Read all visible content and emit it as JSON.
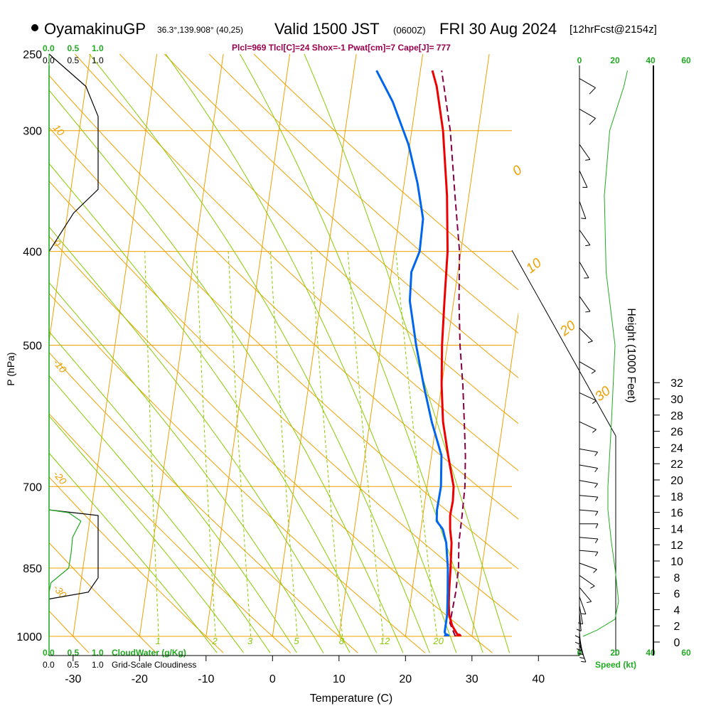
{
  "header": {
    "station": "OyamakinuGP",
    "coords": "36.3°,139.908° (40,25)",
    "valid": "Valid 1500 JST",
    "valid_z": "(0600Z)",
    "date": "FRI 30 Aug 2024",
    "forecast": "[12hrFcst@2154z]",
    "indices": "Plcl=969 Tlcl[C]=24 Shox=-1 Pwat[cm]=7 Cape[J]= 777"
  },
  "colors": {
    "isobar": "#f0a000",
    "dry_adiabat": "#f0a000",
    "moist_adiabat": "#88cc00",
    "mixing_ratio": "#88cc00",
    "temperature": "#ee0000",
    "dewpoint": "#0066ee",
    "parcel": "#880044",
    "cloud": "#22aa22",
    "wind_speed": "#22aa22"
  },
  "chart_data": {
    "type": "skew-t log-p sounding",
    "xlabel": "Temperature (C)",
    "ylabel": "P (hPa)",
    "y2label": "Height (1000 Feet)",
    "x_ticks": [
      "-30",
      "-20",
      "-10",
      "0",
      "10",
      "20",
      "30",
      "40"
    ],
    "x_tick_values": [
      -30,
      -20,
      -10,
      0,
      10,
      20,
      30,
      40
    ],
    "p_ticks": [
      "250",
      "300",
      "400",
      "500",
      "700",
      "850",
      "1000"
    ],
    "p_tick_values": [
      250,
      300,
      400,
      500,
      700,
      850,
      1000
    ],
    "height_ticks": [
      "0",
      "2",
      "4",
      "6",
      "8",
      "10",
      "12",
      "14",
      "16",
      "18",
      "20",
      "22",
      "24",
      "26",
      "28",
      "30",
      "32"
    ],
    "height_tick_values": [
      0,
      2,
      4,
      6,
      8,
      10,
      12,
      14,
      16,
      18,
      20,
      22,
      24,
      26,
      28,
      30,
      32
    ],
    "dry_adiabat_labels": [
      "10",
      "0",
      "-10",
      "-20",
      "-30"
    ],
    "dry_adiabat_label_values": [
      10,
      0,
      -10,
      -20,
      -30
    ],
    "moist_adiabat_labels": [
      "0",
      "10",
      "20",
      "30"
    ],
    "moist_adiabat_label_values": [
      0,
      10,
      20,
      30
    ],
    "mixing_ratio_labels": [
      "1",
      "2",
      "3",
      "5",
      "8",
      "12",
      "20"
    ],
    "mixing_ratio_label_values": [
      1,
      2,
      3,
      5,
      8,
      12,
      20
    ],
    "cloud_axis_ticks": [
      "0.0",
      "0.5",
      "1.0"
    ],
    "cloud_axis_values": [
      0.0,
      0.5,
      1.0
    ],
    "cloud_water_label": "CloudWater (g/Kg)",
    "cloudiness_label": "Grid-Scale Cloudiness",
    "speed_ticks": [
      "0",
      "20",
      "40",
      "60"
    ],
    "speed_tick_values": [
      0,
      20,
      40,
      60
    ],
    "speed_label": "Speed (kt)",
    "temperature": [
      {
        "p": 1000,
        "t": 28.0
      },
      {
        "p": 990,
        "t": 27.5
      },
      {
        "p": 975,
        "t": 26.8
      },
      {
        "p": 950,
        "t": 26.1
      },
      {
        "p": 925,
        "t": 25.8
      },
      {
        "p": 900,
        "t": 25.6
      },
      {
        "p": 850,
        "t": 25.3
      },
      {
        "p": 800,
        "t": 24.9
      },
      {
        "p": 775,
        "t": 24.4
      },
      {
        "p": 750,
        "t": 24.1
      },
      {
        "p": 725,
        "t": 24.2
      },
      {
        "p": 700,
        "t": 24.0
      },
      {
        "p": 650,
        "t": 22.5
      },
      {
        "p": 600,
        "t": 21.0
      },
      {
        "p": 550,
        "t": 20.0
      },
      {
        "p": 500,
        "t": 19.2
      },
      {
        "p": 450,
        "t": 18.6
      },
      {
        "p": 400,
        "t": 18.0
      },
      {
        "p": 350,
        "t": 16.7
      },
      {
        "p": 300,
        "t": 14.7
      },
      {
        "p": 270,
        "t": 12.8
      },
      {
        "p": 260,
        "t": 11.8
      }
    ],
    "dewpoint": [
      {
        "p": 1000,
        "t": 26.2
      },
      {
        "p": 990,
        "t": 25.8
      },
      {
        "p": 950,
        "t": 25.8
      },
      {
        "p": 900,
        "t": 25.4
      },
      {
        "p": 850,
        "t": 24.9
      },
      {
        "p": 800,
        "t": 24.1
      },
      {
        "p": 775,
        "t": 23.3
      },
      {
        "p": 760,
        "t": 22.2
      },
      {
        "p": 740,
        "t": 22.0
      },
      {
        "p": 700,
        "t": 22.1
      },
      {
        "p": 650,
        "t": 21.5
      },
      {
        "p": 600,
        "t": 19.3
      },
      {
        "p": 550,
        "t": 17.3
      },
      {
        "p": 500,
        "t": 15.3
      },
      {
        "p": 450,
        "t": 13.4
      },
      {
        "p": 420,
        "t": 13.0
      },
      {
        "p": 400,
        "t": 13.8
      },
      {
        "p": 370,
        "t": 13.6
      },
      {
        "p": 340,
        "t": 12.0
      },
      {
        "p": 310,
        "t": 9.8
      },
      {
        "p": 280,
        "t": 6.5
      },
      {
        "p": 260,
        "t": 3.4
      }
    ],
    "parcel": [
      {
        "p": 1000,
        "t": 27.5
      },
      {
        "p": 969,
        "t": 26.4
      },
      {
        "p": 900,
        "t": 26.6
      },
      {
        "p": 850,
        "t": 26.5
      },
      {
        "p": 800,
        "t": 26.0
      },
      {
        "p": 750,
        "t": 25.9
      },
      {
        "p": 700,
        "t": 25.7
      },
      {
        "p": 650,
        "t": 25.1
      },
      {
        "p": 600,
        "t": 24.2
      },
      {
        "p": 550,
        "t": 23.2
      },
      {
        "p": 500,
        "t": 21.9
      },
      {
        "p": 450,
        "t": 20.8
      },
      {
        "p": 400,
        "t": 19.8
      },
      {
        "p": 350,
        "t": 17.9
      },
      {
        "p": 300,
        "t": 15.8
      },
      {
        "p": 260,
        "t": 13.2
      }
    ],
    "cloud_water_profile": [
      {
        "p": 1000,
        "v": 0.0
      },
      {
        "p": 900,
        "v": 0.0
      },
      {
        "p": 880,
        "v": 0.04
      },
      {
        "p": 850,
        "v": 0.4
      },
      {
        "p": 820,
        "v": 0.45
      },
      {
        "p": 790,
        "v": 0.48
      },
      {
        "p": 760,
        "v": 0.65
      },
      {
        "p": 745,
        "v": 0.4
      },
      {
        "p": 740,
        "v": 0.0
      },
      {
        "p": 250,
        "v": 0.0
      }
    ],
    "cloudiness_profiles": [
      [
        {
          "p": 740,
          "v": 0.0
        },
        {
          "p": 750,
          "v": 1.0
        },
        {
          "p": 870,
          "v": 1.0
        },
        {
          "p": 900,
          "v": 0.8
        },
        {
          "p": 915,
          "v": 0.0
        }
      ],
      [
        {
          "p": 250,
          "v": 0.0
        },
        {
          "p": 270,
          "v": 0.75
        },
        {
          "p": 290,
          "v": 1.0
        },
        {
          "p": 345,
          "v": 1.0
        },
        {
          "p": 365,
          "v": 0.5
        },
        {
          "p": 400,
          "v": 0.0
        }
      ]
    ],
    "wind_speed_profile": [
      {
        "p": 1000,
        "v": 2
      },
      {
        "p": 985,
        "v": 10
      },
      {
        "p": 960,
        "v": 20
      },
      {
        "p": 920,
        "v": 22
      },
      {
        "p": 850,
        "v": 20
      },
      {
        "p": 800,
        "v": 18
      },
      {
        "p": 740,
        "v": 16
      },
      {
        "p": 700,
        "v": 16
      },
      {
        "p": 600,
        "v": 18
      },
      {
        "p": 500,
        "v": 20
      },
      {
        "p": 420,
        "v": 15
      },
      {
        "p": 350,
        "v": 14
      },
      {
        "p": 300,
        "v": 17
      },
      {
        "p": 270,
        "v": 25
      },
      {
        "p": 260,
        "v": 27
      }
    ],
    "wind_barbs": [
      {
        "p": 265,
        "dir": 120,
        "spd": 8
      },
      {
        "p": 285,
        "dir": 120,
        "spd": 8
      },
      {
        "p": 310,
        "dir": 145,
        "spd": 6
      },
      {
        "p": 330,
        "dir": 155,
        "spd": 6
      },
      {
        "p": 355,
        "dir": 160,
        "spd": 6
      },
      {
        "p": 380,
        "dir": 145,
        "spd": 5
      },
      {
        "p": 410,
        "dir": 150,
        "spd": 5
      },
      {
        "p": 445,
        "dir": 145,
        "spd": 5
      },
      {
        "p": 480,
        "dir": 135,
        "spd": 5
      },
      {
        "p": 520,
        "dir": 120,
        "spd": 5
      },
      {
        "p": 560,
        "dir": 115,
        "spd": 5
      },
      {
        "p": 600,
        "dir": 115,
        "spd": 5
      },
      {
        "p": 640,
        "dir": 100,
        "spd": 5
      },
      {
        "p": 665,
        "dir": 100,
        "spd": 5
      },
      {
        "p": 690,
        "dir": 100,
        "spd": 5
      },
      {
        "p": 715,
        "dir": 95,
        "spd": 5
      },
      {
        "p": 740,
        "dir": 95,
        "spd": 5
      },
      {
        "p": 765,
        "dir": 90,
        "spd": 5
      },
      {
        "p": 790,
        "dir": 95,
        "spd": 5
      },
      {
        "p": 815,
        "dir": 95,
        "spd": 5
      },
      {
        "p": 840,
        "dir": 110,
        "spd": 5
      },
      {
        "p": 865,
        "dir": 125,
        "spd": 5
      },
      {
        "p": 890,
        "dir": 140,
        "spd": 5
      },
      {
        "p": 910,
        "dir": 160,
        "spd": 5
      },
      {
        "p": 930,
        "dir": 170,
        "spd": 5
      },
      {
        "p": 945,
        "dir": 175,
        "spd": 5
      },
      {
        "p": 960,
        "dir": 180,
        "spd": 5
      },
      {
        "p": 975,
        "dir": 180,
        "spd": 5
      },
      {
        "p": 990,
        "dir": 175,
        "spd": 5
      },
      {
        "p": 1000,
        "dir": 170,
        "spd": 5
      },
      {
        "p": 1010,
        "dir": 165,
        "spd": 5
      },
      {
        "p": 1020,
        "dir": 160,
        "spd": 5
      }
    ]
  }
}
